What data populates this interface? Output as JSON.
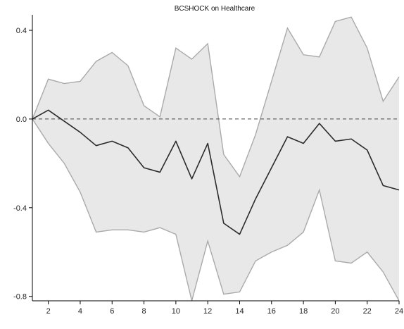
{
  "chart_data": {
    "type": "area",
    "title": "BCSHOCK on Healthcare",
    "xlabel": "",
    "ylabel": "",
    "xlim": [
      1,
      24
    ],
    "ylim": [
      -0.82,
      0.47
    ],
    "x_ticks": [
      2,
      4,
      6,
      8,
      10,
      12,
      14,
      16,
      18,
      20,
      22,
      24
    ],
    "y_ticks": [
      0.4,
      0.0,
      -0.4,
      -0.8
    ],
    "x_tick_labels": [
      "2",
      "4",
      "6",
      "8",
      "10",
      "12",
      "14",
      "16",
      "18",
      "20",
      "22",
      "24"
    ],
    "y_tick_labels": [
      "0.4",
      "0.0",
      "-0.4",
      "-0.8"
    ],
    "grid": false,
    "legend": "none",
    "reference_line": {
      "y": 0.0,
      "style": "dashed"
    },
    "x": [
      1,
      2,
      3,
      4,
      5,
      6,
      7,
      8,
      9,
      10,
      11,
      12,
      13,
      14,
      15,
      16,
      17,
      18,
      19,
      20,
      21,
      22,
      23,
      24
    ],
    "series": [
      {
        "values": [
          0.0,
          0.04,
          -0.01,
          -0.06,
          -0.12,
          -0.1,
          -0.13,
          -0.22,
          -0.24,
          -0.1,
          -0.27,
          -0.11,
          -0.47,
          -0.52,
          -0.36,
          -0.22,
          -0.08,
          -0.11,
          -0.02,
          -0.1,
          -0.09,
          -0.14,
          -0.3,
          -0.32
        ]
      }
    ],
    "band": {
      "upper": [
        0.0,
        0.18,
        0.16,
        0.17,
        0.26,
        0.3,
        0.24,
        0.06,
        0.01,
        0.32,
        0.27,
        0.34,
        -0.16,
        -0.26,
        -0.07,
        0.17,
        0.41,
        0.29,
        0.28,
        0.44,
        0.46,
        0.32,
        0.08,
        0.19
      ],
      "lower": [
        0.0,
        -0.11,
        -0.2,
        -0.33,
        -0.51,
        -0.5,
        -0.5,
        -0.51,
        -0.49,
        -0.52,
        -0.82,
        -0.55,
        -0.79,
        -0.78,
        -0.64,
        -0.6,
        -0.57,
        -0.51,
        -0.32,
        -0.64,
        -0.65,
        -0.6,
        -0.69,
        -0.82
      ]
    },
    "colors": {
      "band_fill": "#e8e8e8",
      "band_edge": "#aaaaaa",
      "line": "#2b2b2b",
      "axis": "#000000",
      "zero_line": "#444444"
    }
  }
}
